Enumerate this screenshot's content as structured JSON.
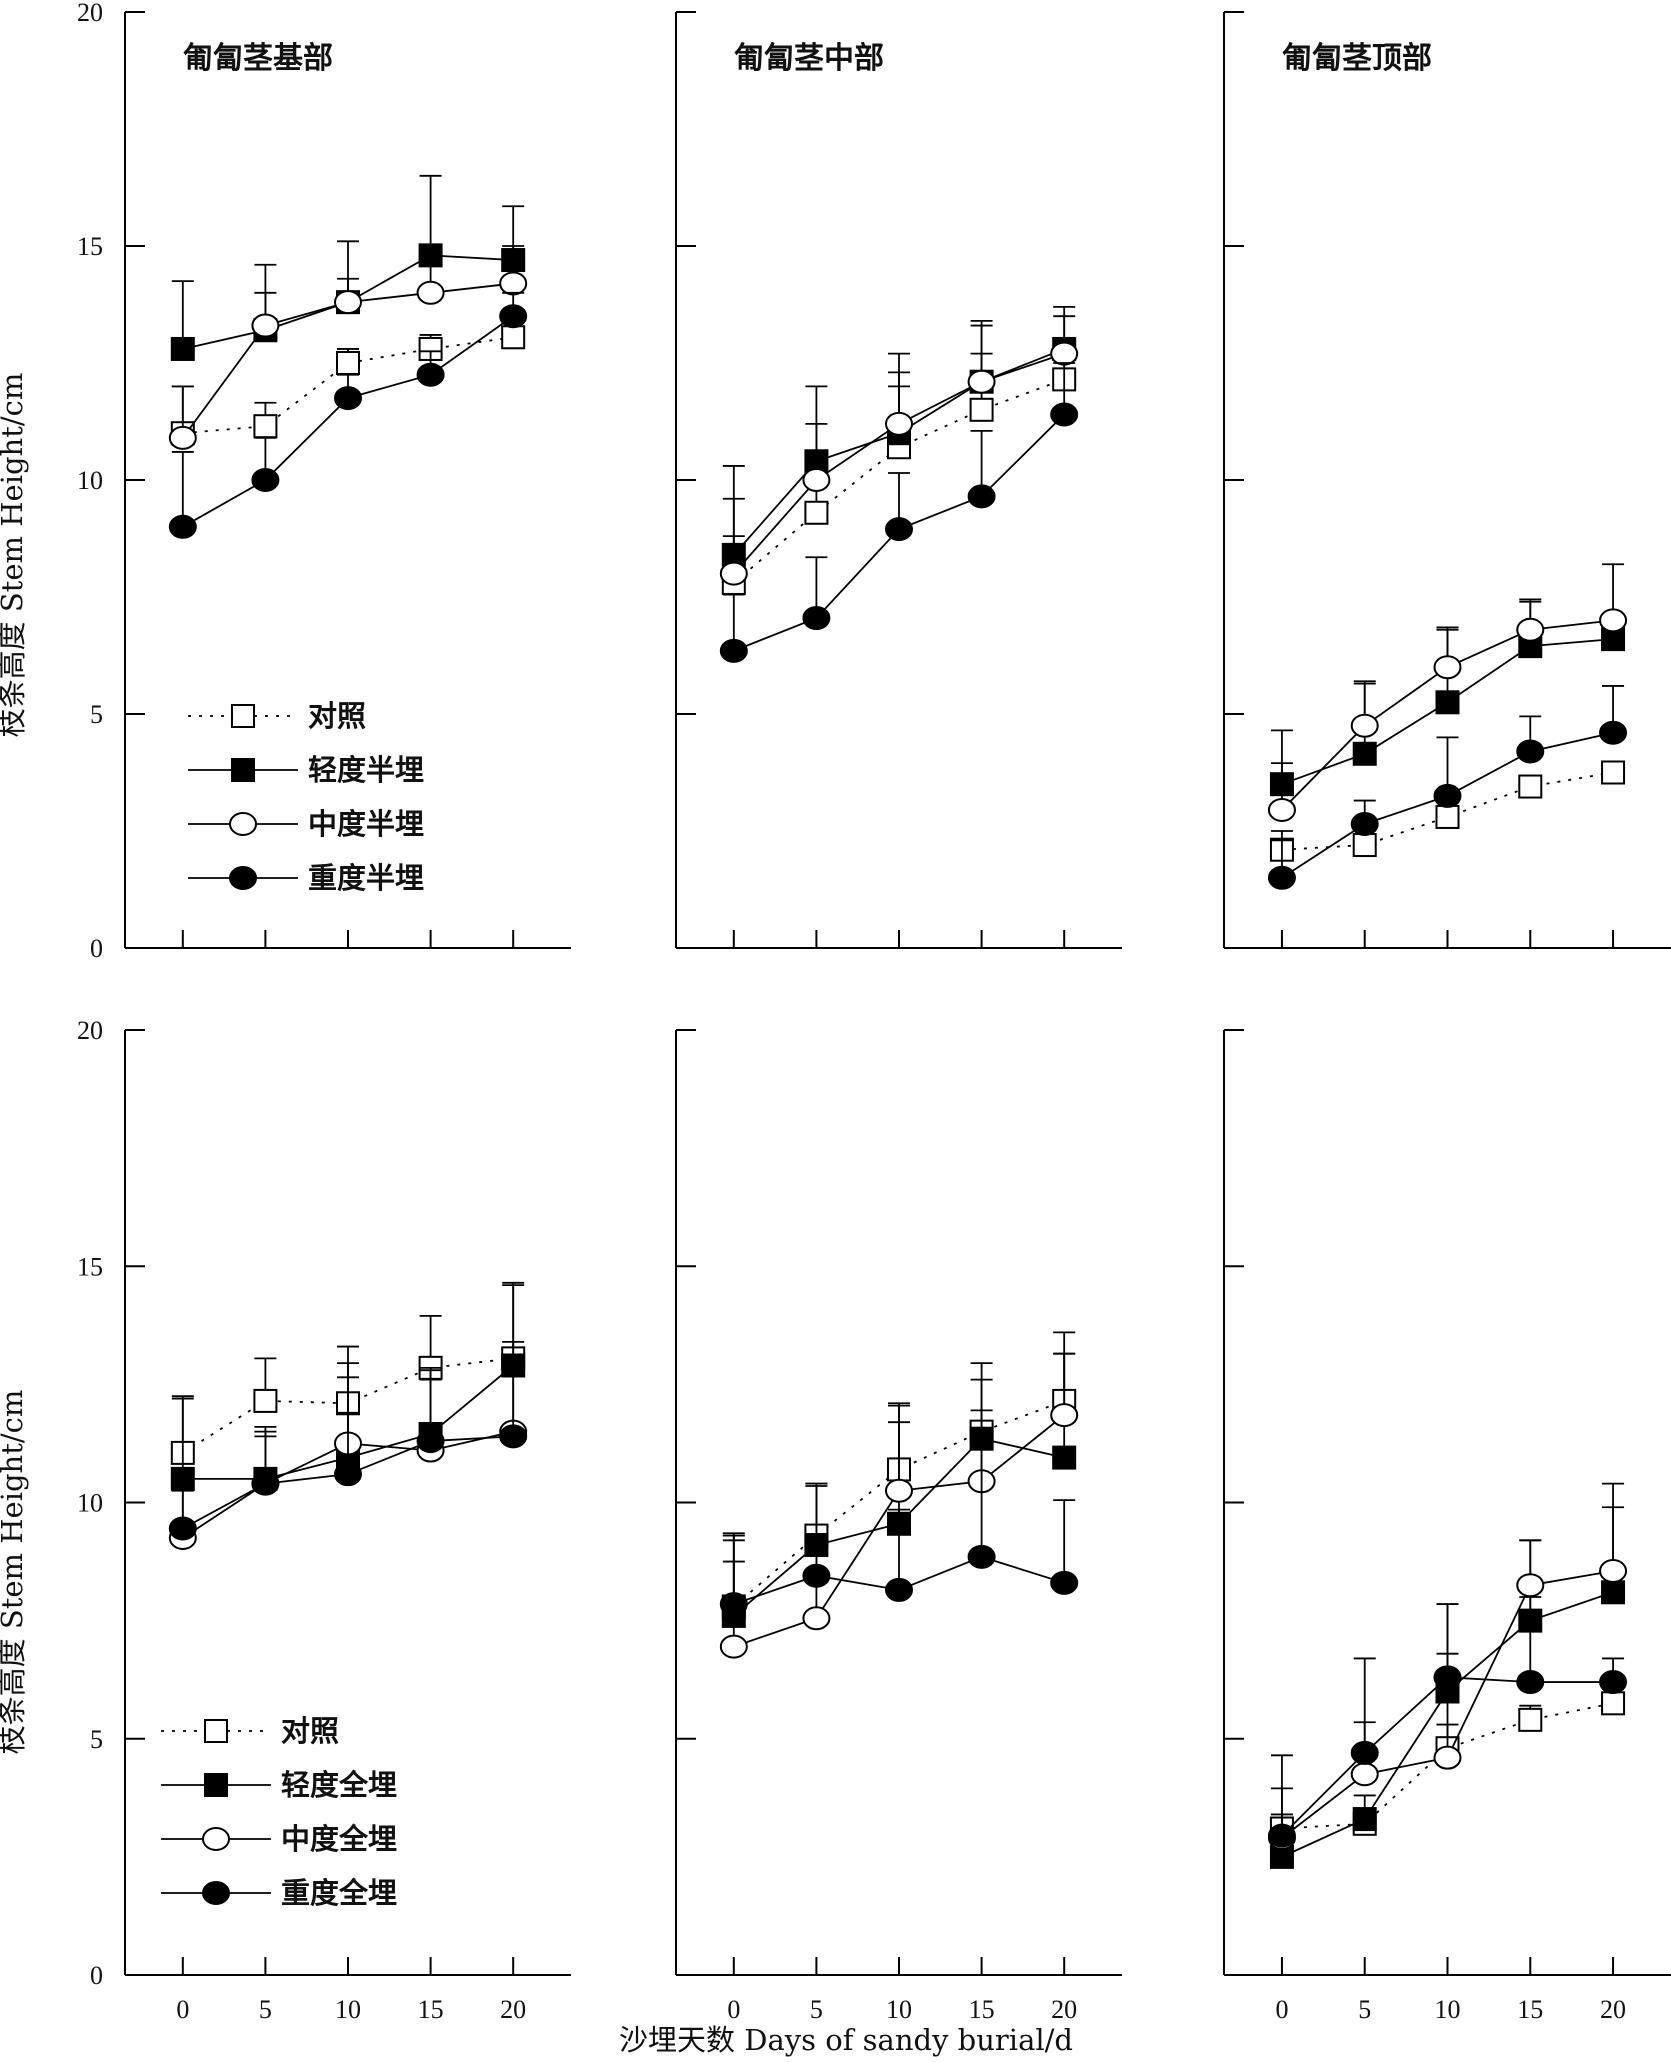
{
  "figure": {
    "ylabel": "枝条高度 Stem Height/cm",
    "xlabel": "沙埋天数 Days of sandy burial/d"
  },
  "legends": {
    "top": [
      "对照",
      "轻度半埋",
      "中度半埋",
      "重度半埋"
    ],
    "bottom": [
      "对照",
      "轻度全埋",
      "中度全埋",
      "重度全埋"
    ]
  },
  "colors": {
    "ink": "#000000",
    "background": "#ffffff"
  },
  "chart_data": [
    {
      "type": "line",
      "title": "匍匐茎基部",
      "row": 0,
      "col": 0,
      "legend": "top",
      "x": [
        0,
        5,
        10,
        15,
        20
      ],
      "xlim": [
        -3.5,
        23.5
      ],
      "ylim": [
        0,
        20
      ],
      "yticks": [
        0,
        5,
        10,
        15,
        20
      ],
      "xticks": [
        0,
        5,
        10,
        15,
        20
      ],
      "show_y_tick_labels": true,
      "show_x_tick_labels": false,
      "series": [
        {
          "name": "对照",
          "marker": "square-open",
          "line": "dotted",
          "values": [
            11.0,
            11.15,
            12.5,
            12.8,
            13.05
          ],
          "err": [
            1.0,
            0.5,
            0.3,
            0.3,
            0.15
          ]
        },
        {
          "name": "轻度半埋",
          "marker": "square-filled",
          "line": "solid",
          "values": [
            12.8,
            13.2,
            13.8,
            14.8,
            14.7
          ],
          "err": [
            1.45,
            0.8,
            1.3,
            1.7,
            1.15
          ]
        },
        {
          "name": "中度半埋",
          "marker": "circle-open",
          "line": "solid",
          "values": [
            10.9,
            13.3,
            13.8,
            14.0,
            14.2
          ],
          "err": [
            1.1,
            1.3,
            0.5,
            0.6,
            0.8
          ]
        },
        {
          "name": "重度半埋",
          "marker": "circle-filled",
          "line": "solid",
          "values": [
            9.0,
            10.0,
            11.75,
            12.25,
            13.5
          ],
          "err": [
            1.6,
            0.9,
            0.5,
            0.5,
            0.5
          ]
        }
      ]
    },
    {
      "type": "line",
      "title": "匍匐茎中部",
      "row": 0,
      "col": 1,
      "legend": "",
      "x": [
        0,
        5,
        10,
        15,
        20
      ],
      "xlim": [
        -3.5,
        23.5
      ],
      "ylim": [
        0,
        20
      ],
      "yticks": [
        0,
        5,
        10,
        15,
        20
      ],
      "xticks": [
        0,
        5,
        10,
        15,
        20
      ],
      "show_y_tick_labels": false,
      "show_x_tick_labels": false,
      "series": [
        {
          "name": "对照",
          "marker": "square-open",
          "line": "dotted",
          "values": [
            7.8,
            9.3,
            10.7,
            11.5,
            12.15
          ],
          "err": [
            1.0,
            0.8,
            1.3,
            1.2,
            0.8
          ]
        },
        {
          "name": "轻度半埋",
          "marker": "square-filled",
          "line": "solid",
          "values": [
            8.4,
            10.4,
            11.0,
            12.1,
            12.8
          ],
          "err": [
            1.9,
            1.6,
            1.7,
            1.2,
            0.9
          ]
        },
        {
          "name": "中度半埋",
          "marker": "circle-open",
          "line": "solid",
          "values": [
            8.0,
            10.0,
            11.2,
            12.1,
            12.7
          ],
          "err": [
            1.6,
            1.2,
            1.1,
            1.3,
            0.8
          ]
        },
        {
          "name": "重度半埋",
          "marker": "circle-filled",
          "line": "solid",
          "values": [
            6.35,
            7.05,
            8.95,
            9.65,
            11.4
          ],
          "err": [
            1.2,
            1.3,
            1.2,
            1.4,
            1.1
          ]
        }
      ]
    },
    {
      "type": "line",
      "title": "匍匐茎顶部",
      "row": 0,
      "col": 2,
      "legend": "",
      "x": [
        0,
        5,
        10,
        15,
        20
      ],
      "xlim": [
        -3.5,
        23.5
      ],
      "ylim": [
        0,
        20
      ],
      "yticks": [
        0,
        5,
        10,
        15,
        20
      ],
      "xticks": [
        0,
        5,
        10,
        15,
        20
      ],
      "show_y_tick_labels": false,
      "show_x_tick_labels": false,
      "series": [
        {
          "name": "对照",
          "marker": "square-open",
          "line": "dotted",
          "values": [
            2.1,
            2.2,
            2.8,
            3.45,
            3.75
          ],
          "err": [
            0.4,
            0.3,
            0.3,
            0.2,
            0.2
          ]
        },
        {
          "name": "轻度半埋",
          "marker": "square-filled",
          "line": "solid",
          "values": [
            3.5,
            4.15,
            5.25,
            6.45,
            6.6
          ],
          "err": [
            1.15,
            1.55,
            1.6,
            1.0,
            0.3
          ]
        },
        {
          "name": "中度半埋",
          "marker": "circle-open",
          "line": "solid",
          "values": [
            2.95,
            4.75,
            6.0,
            6.8,
            7.0
          ],
          "err": [
            1.0,
            0.9,
            0.8,
            0.6,
            1.2
          ]
        },
        {
          "name": "重度半埋",
          "marker": "circle-filled",
          "line": "solid",
          "values": [
            1.5,
            2.65,
            3.25,
            4.2,
            4.6
          ],
          "err": [
            0.8,
            0.5,
            1.25,
            0.75,
            1.0
          ]
        }
      ]
    },
    {
      "type": "line",
      "title": "",
      "row": 1,
      "col": 0,
      "legend": "bottom",
      "x": [
        0,
        5,
        10,
        15,
        20
      ],
      "xlim": [
        -3.5,
        23.5
      ],
      "ylim": [
        0,
        20
      ],
      "yticks": [
        0,
        5,
        10,
        15,
        20
      ],
      "xticks": [
        0,
        5,
        10,
        15,
        20
      ],
      "show_y_tick_labels": true,
      "show_x_tick_labels": true,
      "series": [
        {
          "name": "对照",
          "marker": "square-open",
          "line": "dotted",
          "values": [
            11.05,
            12.15,
            12.1,
            12.85,
            13.05
          ],
          "err": [
            1.2,
            0.9,
            1.2,
            1.1,
            1.6
          ]
        },
        {
          "name": "轻度全埋",
          "marker": "square-filled",
          "line": "solid",
          "values": [
            10.5,
            10.5,
            10.95,
            11.45,
            12.9
          ],
          "err": [
            1.7,
            1.1,
            2.0,
            1.4,
            1.7
          ]
        },
        {
          "name": "中度全埋",
          "marker": "circle-open",
          "line": "solid",
          "values": [
            9.25,
            10.4,
            11.25,
            11.1,
            11.5
          ],
          "err": [
            1.0,
            1.1,
            1.4,
            1.7,
            1.9
          ]
        },
        {
          "name": "重度全埋",
          "marker": "circle-filled",
          "line": "solid",
          "values": [
            9.45,
            10.4,
            10.6,
            11.3,
            11.4
          ],
          "err": [
            1.1,
            1.0,
            1.3,
            1.3,
            1.6
          ]
        }
      ]
    },
    {
      "type": "line",
      "title": "",
      "row": 1,
      "col": 1,
      "legend": "",
      "x": [
        0,
        5,
        10,
        15,
        20
      ],
      "xlim": [
        -3.5,
        23.5
      ],
      "ylim": [
        0,
        20
      ],
      "yticks": [
        0,
        5,
        10,
        15,
        20
      ],
      "xticks": [
        0,
        5,
        10,
        15,
        20
      ],
      "show_y_tick_labels": false,
      "show_x_tick_labels": true,
      "series": [
        {
          "name": "对照",
          "marker": "square-open",
          "line": "dotted",
          "values": [
            7.8,
            9.3,
            10.7,
            11.5,
            12.15
          ],
          "err": [
            1.4,
            1.1,
            1.4,
            1.1,
            1.45
          ]
        },
        {
          "name": "轻度全埋",
          "marker": "square-filled",
          "line": "solid",
          "values": [
            7.6,
            9.1,
            9.55,
            11.35,
            10.95
          ],
          "err": [
            1.7,
            1.3,
            2.15,
            1.6,
            2.2
          ]
        },
        {
          "name": "中度全埋",
          "marker": "circle-open",
          "line": "solid",
          "values": [
            6.95,
            7.55,
            10.25,
            10.45,
            11.85
          ],
          "err": [
            1.8,
            1.6,
            1.8,
            1.5,
            1.3
          ]
        },
        {
          "name": "重度全埋",
          "marker": "circle-filled",
          "line": "solid",
          "values": [
            7.85,
            8.45,
            8.15,
            8.85,
            8.3
          ],
          "err": [
            1.5,
            1.9,
            1.7,
            2.5,
            1.75
          ]
        }
      ]
    },
    {
      "type": "line",
      "title": "",
      "row": 1,
      "col": 2,
      "legend": "",
      "x": [
        0,
        5,
        10,
        15,
        20
      ],
      "xlim": [
        -3.5,
        23.5
      ],
      "ylim": [
        0,
        20
      ],
      "yticks": [
        0,
        5,
        10,
        15,
        20
      ],
      "xticks": [
        0,
        5,
        10,
        15,
        20
      ],
      "show_y_tick_labels": false,
      "show_x_tick_labels": true,
      "series": [
        {
          "name": "对照",
          "marker": "square-open",
          "line": "dotted",
          "values": [
            3.1,
            3.2,
            4.8,
            5.4,
            5.75
          ],
          "err": [
            0.3,
            0.3,
            0.5,
            0.3,
            0.3
          ]
        },
        {
          "name": "轻度全埋",
          "marker": "square-filled",
          "line": "solid",
          "values": [
            2.5,
            3.3,
            6.0,
            7.5,
            8.1
          ],
          "err": [
            0.9,
            0.5,
            1.85,
            1.7,
            1.8
          ]
        },
        {
          "name": "中度全埋",
          "marker": "circle-open",
          "line": "solid",
          "values": [
            2.9,
            4.25,
            4.6,
            8.25,
            8.55
          ],
          "err": [
            1.05,
            1.1,
            2.2,
            0.95,
            1.85
          ]
        },
        {
          "name": "重度全埋",
          "marker": "circle-filled",
          "line": "solid",
          "values": [
            2.95,
            4.7,
            6.3,
            6.2,
            6.2
          ],
          "err": [
            1.7,
            2.0,
            1.55,
            1.8,
            0.5
          ]
        }
      ]
    }
  ]
}
